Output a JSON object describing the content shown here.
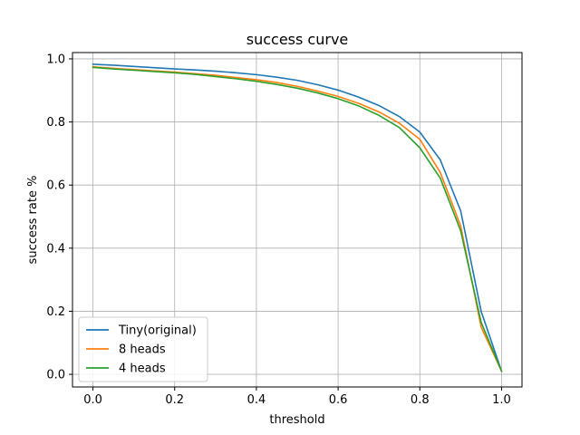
{
  "chart_data": {
    "type": "line",
    "title": "success curve",
    "xlabel": "threshold",
    "ylabel": "success rate %",
    "xlim": [
      -0.05,
      1.05
    ],
    "ylim": [
      -0.04,
      1.02
    ],
    "xticks": [
      "0.0",
      "0.2",
      "0.4",
      "0.6",
      "0.8",
      "1.0"
    ],
    "yticks": [
      "0.0",
      "0.2",
      "0.4",
      "0.6",
      "0.8",
      "1.0"
    ],
    "grid": true,
    "legend_position": "lower-left",
    "x": [
      0.0,
      0.05,
      0.1,
      0.15,
      0.2,
      0.25,
      0.3,
      0.35,
      0.4,
      0.45,
      0.5,
      0.55,
      0.6,
      0.65,
      0.7,
      0.75,
      0.8,
      0.85,
      0.9,
      0.95,
      1.0
    ],
    "series": [
      {
        "name": "Tiny(original)",
        "color": "#1f77b4",
        "values": [
          0.983,
          0.98,
          0.976,
          0.972,
          0.968,
          0.965,
          0.961,
          0.956,
          0.95,
          0.942,
          0.932,
          0.918,
          0.901,
          0.879,
          0.852,
          0.817,
          0.768,
          0.68,
          0.518,
          0.2,
          0.01
        ]
      },
      {
        "name": "8 heads",
        "color": "#ff7f0e",
        "values": [
          0.975,
          0.97,
          0.966,
          0.962,
          0.958,
          0.953,
          0.948,
          0.941,
          0.934,
          0.925,
          0.913,
          0.898,
          0.881,
          0.859,
          0.832,
          0.796,
          0.745,
          0.64,
          0.47,
          0.15,
          0.01
        ]
      },
      {
        "name": "4 heads",
        "color": "#2ca02c",
        "values": [
          0.973,
          0.968,
          0.964,
          0.96,
          0.956,
          0.951,
          0.944,
          0.937,
          0.929,
          0.919,
          0.907,
          0.892,
          0.874,
          0.851,
          0.821,
          0.782,
          0.718,
          0.622,
          0.455,
          0.165,
          0.01
        ]
      }
    ]
  }
}
